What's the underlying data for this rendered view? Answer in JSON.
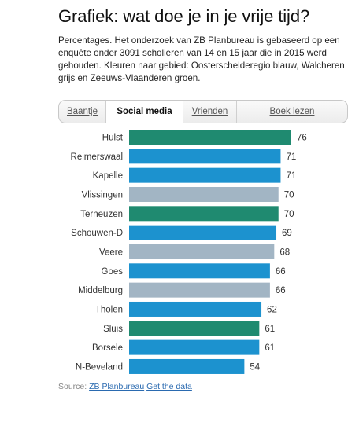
{
  "header": {
    "title": "Grafiek: wat doe je in je vrije tijd?",
    "subtitle": "Percentages. Het onderzoek van ZB Planbureau is gebaseerd op een enquête onder 3091 scholieren van 14 en 15 jaar die in 2015 werd gehouden. Kleuren naar gebied: Oosterschelderegio blauw, Walcheren grijs en Zeeuws-Vlaanderen groen."
  },
  "tabs": [
    {
      "label": "Baantje",
      "active": false
    },
    {
      "label": "Social media",
      "active": true
    },
    {
      "label": "Vrienden",
      "active": false
    },
    {
      "label": "Boek lezen",
      "active": false
    }
  ],
  "colors": {
    "oosterschelderegio": "#1c92cf",
    "walcheren": "#a2b5c4",
    "zeeuws_vlaanderen": "#1f8a70"
  },
  "chart_data": {
    "type": "bar",
    "orientation": "horizontal",
    "title": "",
    "xlabel": "",
    "ylabel": "",
    "categories": [
      "Hulst",
      "Reimerswaal",
      "Kapelle",
      "Vlissingen",
      "Terneuzen",
      "Schouwen-D",
      "Veere",
      "Goes",
      "Middelburg",
      "Tholen",
      "Sluis",
      "Borsele",
      "N-Beveland"
    ],
    "values": [
      76,
      71,
      71,
      70,
      70,
      69,
      68,
      66,
      66,
      62,
      61,
      61,
      54
    ],
    "regions": [
      "zeeuws_vlaanderen",
      "oosterschelderegio",
      "oosterschelderegio",
      "walcheren",
      "zeeuws_vlaanderen",
      "oosterschelderegio",
      "walcheren",
      "oosterschelderegio",
      "walcheren",
      "oosterschelderegio",
      "zeeuws_vlaanderen",
      "oosterschelderegio",
      "oosterschelderegio"
    ],
    "xlim": [
      0,
      76
    ]
  },
  "footer": {
    "source_prefix": "Source:",
    "source_link": "ZB Planbureau",
    "data_link": "Get the data"
  }
}
